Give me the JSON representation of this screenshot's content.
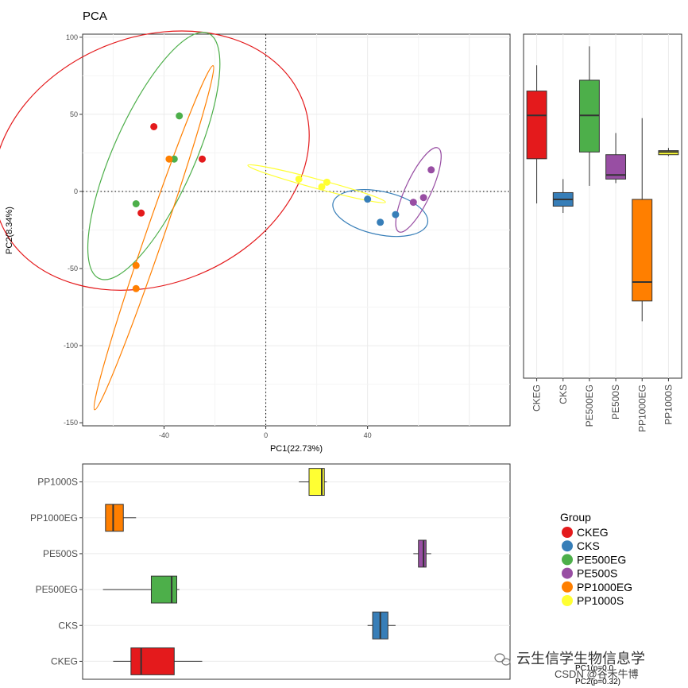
{
  "chart_data": {
    "type": "scatter",
    "title": "PCA",
    "xlabel": "PC1(22.73%)",
    "ylabel": "PC2(8.34%)",
    "xlim": [
      -72,
      96
    ],
    "ylim": [
      -152,
      102
    ],
    "x_ticks": [
      -40,
      0,
      40
    ],
    "y_ticks": [
      100,
      50,
      0,
      -50,
      -100,
      -150
    ],
    "x_tick_labels": [
      "-40",
      "0",
      "40"
    ],
    "y_tick_labels": [
      "100",
      "50",
      "0",
      "-50",
      "-100",
      "-150"
    ],
    "reference_lines": {
      "x": 0,
      "y": 0,
      "style": "dotted"
    },
    "grid": true,
    "series": [
      {
        "name": "CKEG",
        "color": "#E41A1C",
        "points": [
          [
            -44,
            42
          ],
          [
            -25,
            21
          ],
          [
            -49,
            -14
          ]
        ],
        "ellipse": {
          "cx": -45,
          "cy": 20,
          "rx": 64,
          "ry": 80,
          "rotate": -22
        }
      },
      {
        "name": "CKS",
        "color": "#377EB8",
        "points": [
          [
            40,
            -5
          ],
          [
            45,
            -20
          ],
          [
            51,
            -15
          ]
        ],
        "ellipse": {
          "cx": 45,
          "cy": -14,
          "rx": 19,
          "ry": 14,
          "rotate": 12
        }
      },
      {
        "name": "PE500EG",
        "color": "#4DAF4A",
        "points": [
          [
            -34,
            49
          ],
          [
            -36,
            21
          ],
          [
            -51,
            -8
          ]
        ],
        "ellipse": {
          "cx": -44,
          "cy": 23,
          "rx": 16,
          "ry": 87,
          "rotate": 24
        }
      },
      {
        "name": "PE500S",
        "color": "#984EA3",
        "points": [
          [
            58,
            -7
          ],
          [
            62,
            -4
          ],
          [
            65,
            14
          ]
        ],
        "ellipse": {
          "cx": 60,
          "cy": 1,
          "rx": 5,
          "ry": 30,
          "rotate": 25
        }
      },
      {
        "name": "PP1000EG",
        "color": "#FF7F00",
        "points": [
          [
            -38,
            21
          ],
          [
            -51,
            -48
          ],
          [
            -51,
            -63
          ]
        ],
        "ellipse": {
          "cx": -44,
          "cy": -30,
          "rx": 3.5,
          "ry": 118,
          "rotate": 19
        }
      },
      {
        "name": "PP1000S",
        "color": "#FFFF33",
        "points": [
          [
            13,
            8
          ],
          [
            22,
            3
          ],
          [
            24,
            6
          ]
        ],
        "ellipse": {
          "cx": 20,
          "cy": 5,
          "rx": 28,
          "ry": 3,
          "rotate": 15
        }
      }
    ],
    "boxplot_right": {
      "axis": "PC2",
      "categories": [
        "CKEG",
        "CKS",
        "PE500EG",
        "PE500S",
        "PP1000EG",
        "PP1000S"
      ],
      "boxes": [
        {
          "name": "CKEG",
          "min": -23,
          "q1": 10,
          "median": 42,
          "q3": 60,
          "max": 79
        },
        {
          "name": "CKS",
          "min": -30,
          "q1": -25,
          "median": -20,
          "q3": -15,
          "max": -5
        },
        {
          "name": "PE500EG",
          "min": -10,
          "q1": 15,
          "median": 42,
          "q3": 68,
          "max": 93
        },
        {
          "name": "PE500S",
          "min": -8,
          "q1": -5,
          "median": -2,
          "q3": 13,
          "max": 29
        },
        {
          "name": "PP1000EG",
          "min": -110,
          "q1": -95,
          "median": -81,
          "q3": -20,
          "max": 40
        },
        {
          "name": "PP1000S",
          "min": 12,
          "q1": 13,
          "median": 15,
          "q3": 16,
          "max": 18
        }
      ]
    },
    "boxplot_bottom": {
      "axis": "PC1",
      "categories": [
        "PP1000S",
        "PP1000EG",
        "PE500S",
        "PE500EG",
        "CKS",
        "CKEG"
      ],
      "boxes": [
        {
          "name": "CKEG",
          "min": -60,
          "q1": -53,
          "median": -49,
          "q3": -36,
          "max": -25
        },
        {
          "name": "CKS",
          "min": 40,
          "q1": 42,
          "median": 45,
          "q3": 48,
          "max": 51
        },
        {
          "name": "PE500EG",
          "min": -64,
          "q1": -45,
          "median": -37,
          "q3": -35,
          "max": -34
        },
        {
          "name": "PE500S",
          "min": 58,
          "q1": 60,
          "median": 62,
          "q3": 63,
          "max": 65
        },
        {
          "name": "PP1000EG",
          "min": -63,
          "q1": -63,
          "median": -60,
          "q3": -56,
          "max": -51
        },
        {
          "name": "PP1000S",
          "min": 13,
          "q1": 17,
          "median": 22,
          "q3": 23,
          "max": 24
        }
      ]
    }
  },
  "legend": {
    "title": "Group",
    "items": [
      {
        "label": "CKEG",
        "color": "#E41A1C"
      },
      {
        "label": "CKS",
        "color": "#377EB8"
      },
      {
        "label": "PE500EG",
        "color": "#4DAF4A"
      },
      {
        "label": "PE500S",
        "color": "#984EA3"
      },
      {
        "label": "PP1000EG",
        "color": "#FF7F00"
      },
      {
        "label": "PP1000S",
        "color": "#FFFF33"
      }
    ]
  },
  "watermark": {
    "main": "云生信学生物信息学",
    "sub": "CSDN @谷禾牛博",
    "overlay_1": "PC1(p=0.0",
    "overlay_2": "PC2(p=0.32)"
  }
}
